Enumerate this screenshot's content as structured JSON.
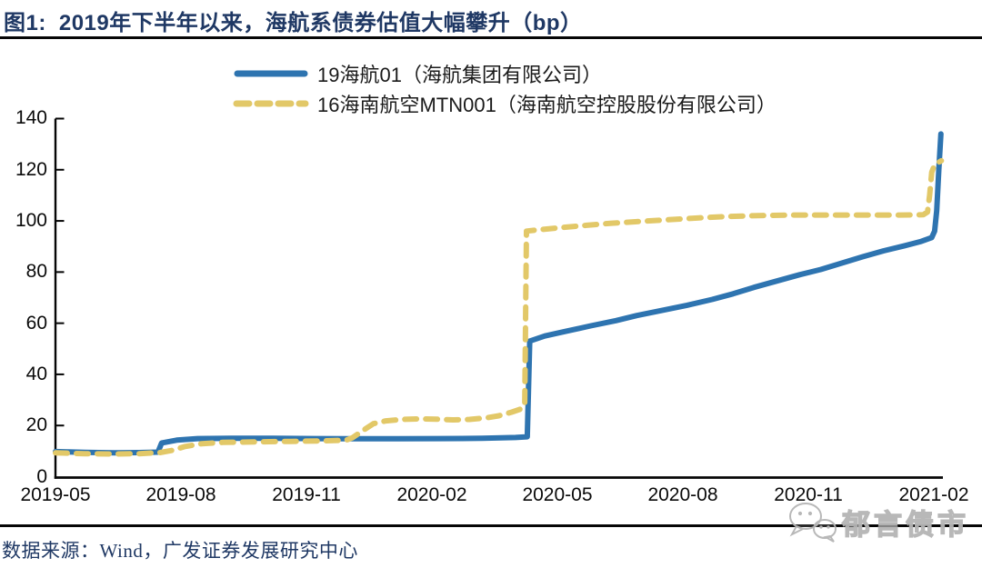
{
  "header": {
    "figure_label": "图1:",
    "title": "2019年下半年以来，海航系债券估值大幅攀升（bp）"
  },
  "footer": {
    "source": "数据来源：Wind，广发证券发展研究中心"
  },
  "watermark": {
    "label": "郁言债市",
    "icon": "wechat-icon"
  },
  "chart_data": {
    "type": "line",
    "title": "2019年下半年以来，海航系债券估值大幅攀升",
    "unit": "bp",
    "grid": false,
    "legend_position": "top-center",
    "ylim": [
      0,
      140
    ],
    "y_ticks": [
      0,
      20,
      40,
      60,
      80,
      100,
      120,
      140
    ],
    "x_unit": "months since 2019-05",
    "xlim": [
      0,
      21.2
    ],
    "x_ticks": [
      {
        "m": 0,
        "label": "2019-05"
      },
      {
        "m": 3,
        "label": "2019-08"
      },
      {
        "m": 6,
        "label": "2019-11"
      },
      {
        "m": 9,
        "label": "2020-02"
      },
      {
        "m": 12,
        "label": "2020-05"
      },
      {
        "m": 15,
        "label": "2020-08"
      },
      {
        "m": 18,
        "label": "2020-11"
      },
      {
        "m": 21,
        "label": "2021-02"
      }
    ],
    "series": [
      {
        "name": "19海航01（海航集团有限公司）",
        "color": "#2E74B0",
        "style": "solid",
        "dash": null,
        "points": [
          [
            0,
            9.8
          ],
          [
            0.7,
            9.5
          ],
          [
            1.4,
            9.3
          ],
          [
            2.0,
            9.4
          ],
          [
            2.45,
            9.6
          ],
          [
            2.54,
            13.2
          ],
          [
            2.9,
            14.3
          ],
          [
            3.4,
            14.9
          ],
          [
            4.2,
            15
          ],
          [
            5.2,
            15
          ],
          [
            6.2,
            14.9
          ],
          [
            7.2,
            14.8
          ],
          [
            8.2,
            14.8
          ],
          [
            9.2,
            14.9
          ],
          [
            10.2,
            15
          ],
          [
            11.0,
            15.3
          ],
          [
            11.28,
            15.6
          ],
          [
            11.34,
            53
          ],
          [
            11.7,
            55
          ],
          [
            12.2,
            56.8
          ],
          [
            12.8,
            59
          ],
          [
            13.4,
            61
          ],
          [
            13.9,
            63
          ],
          [
            14.5,
            65
          ],
          [
            15.1,
            67
          ],
          [
            15.7,
            69.3
          ],
          [
            16.2,
            71.5
          ],
          [
            16.7,
            74
          ],
          [
            17.2,
            76.3
          ],
          [
            17.8,
            79
          ],
          [
            18.3,
            81
          ],
          [
            18.8,
            83.5
          ],
          [
            19.3,
            86
          ],
          [
            19.8,
            88.3
          ],
          [
            20.3,
            90.3
          ],
          [
            20.7,
            92
          ],
          [
            20.95,
            93.5
          ],
          [
            21.02,
            96
          ],
          [
            21.07,
            104
          ],
          [
            21.12,
            120
          ],
          [
            21.17,
            134
          ]
        ]
      },
      {
        "name": "16海南航空MTN001（海南航空控股股份有限公司）",
        "color": "#E2C868",
        "style": "dashed",
        "dash": [
          13,
          10
        ],
        "points": [
          [
            0,
            9.3
          ],
          [
            0.7,
            9.0
          ],
          [
            1.4,
            8.9
          ],
          [
            2.0,
            9.0
          ],
          [
            2.5,
            9.4
          ],
          [
            2.8,
            10.3
          ],
          [
            3.1,
            11.8
          ],
          [
            3.5,
            12.9
          ],
          [
            4.0,
            13.4
          ],
          [
            4.8,
            13.6
          ],
          [
            5.6,
            13.8
          ],
          [
            6.4,
            14.0
          ],
          [
            6.95,
            14.3
          ],
          [
            7.1,
            15.2
          ],
          [
            7.35,
            18
          ],
          [
            7.6,
            20.7
          ],
          [
            7.9,
            21.8
          ],
          [
            8.3,
            22.4
          ],
          [
            8.7,
            22.6
          ],
          [
            9.1,
            22.5
          ],
          [
            9.5,
            22.2
          ],
          [
            9.9,
            22.4
          ],
          [
            10.3,
            23.0
          ],
          [
            10.6,
            23.8
          ],
          [
            10.9,
            25.2
          ],
          [
            11.1,
            26.3
          ],
          [
            11.22,
            28
          ],
          [
            11.26,
            96
          ],
          [
            11.6,
            96.6
          ],
          [
            12.1,
            97.4
          ],
          [
            12.7,
            98.3
          ],
          [
            13.3,
            99.1
          ],
          [
            13.9,
            99.7
          ],
          [
            14.6,
            100.4
          ],
          [
            15.3,
            101.1
          ],
          [
            16.0,
            101.7
          ],
          [
            16.8,
            102.1
          ],
          [
            17.6,
            102.3
          ],
          [
            18.5,
            102.3
          ],
          [
            19.4,
            102.3
          ],
          [
            20.2,
            102.3
          ],
          [
            20.75,
            102.4
          ],
          [
            20.85,
            103.5
          ],
          [
            20.9,
            110
          ],
          [
            20.95,
            119
          ],
          [
            21.02,
            122
          ],
          [
            21.18,
            123.5
          ]
        ]
      }
    ]
  }
}
